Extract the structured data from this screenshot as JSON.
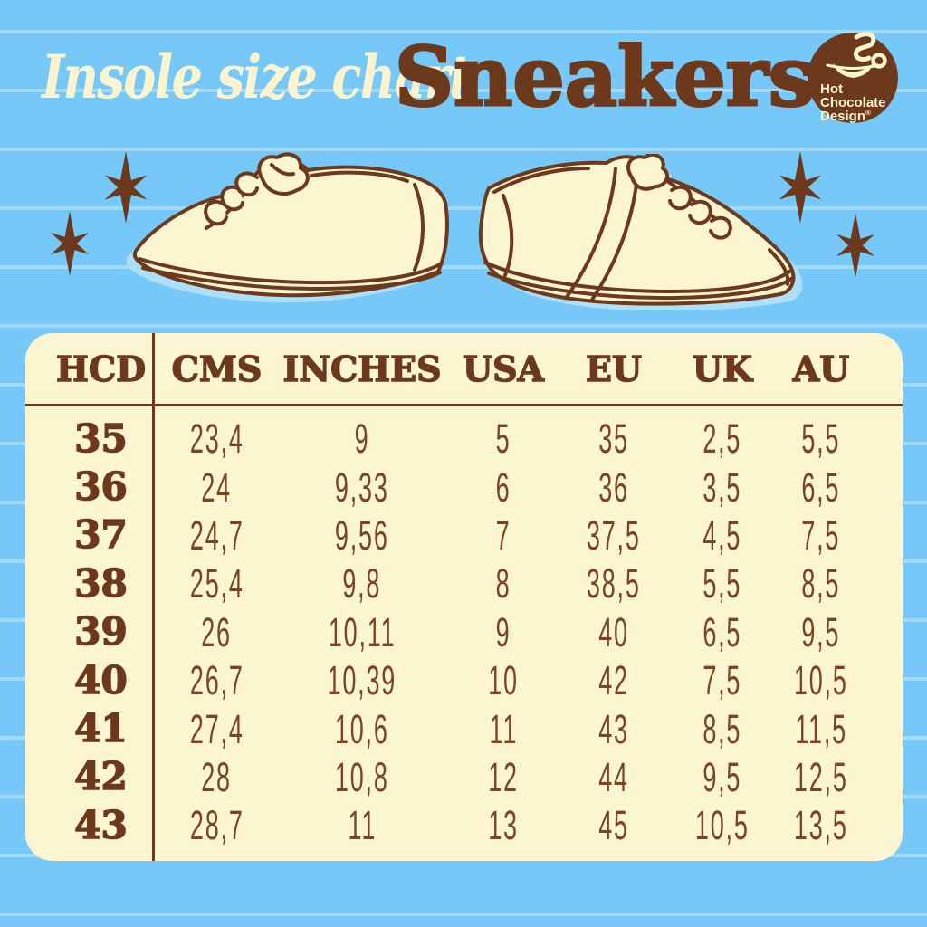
{
  "page": {
    "title_script": "Insole size chart",
    "title_main": "Sneakers"
  },
  "logo": {
    "line1": "Hot",
    "line2": "Chocolate",
    "line3": "Design",
    "registered": "®",
    "icon": "steaming-hot-chocolate-cup-icon"
  },
  "decor": {
    "left_stars": 2,
    "right_stars": 2,
    "star_icon": "sparkle-star-icon",
    "illustrations": [
      "left-facing sneaker",
      "right-facing sneaker"
    ]
  },
  "chart_data": {
    "type": "table",
    "title": "Insole size chart — Sneakers",
    "columns": [
      "HCD",
      "CMS",
      "INCHES",
      "USA",
      "EU",
      "UK",
      "AU"
    ],
    "rows": [
      [
        "35",
        "23,4",
        "9",
        "5",
        "35",
        "2,5",
        "5,5"
      ],
      [
        "36",
        "24",
        "9,33",
        "6",
        "36",
        "3,5",
        "6,5"
      ],
      [
        "37",
        "24,7",
        "9,56",
        "7",
        "37,5",
        "4,5",
        "7,5"
      ],
      [
        "38",
        "25,4",
        "9,8",
        "8",
        "38,5",
        "5,5",
        "8,5"
      ],
      [
        "39",
        "26",
        "10,11",
        "9",
        "40",
        "6,5",
        "9,5"
      ],
      [
        "40",
        "26,7",
        "10,39",
        "10",
        "42",
        "7,5",
        "10,5"
      ],
      [
        "41",
        "27,4",
        "10,6",
        "11",
        "43",
        "8,5",
        "11,5"
      ],
      [
        "42",
        "28",
        "10,8",
        "12",
        "44",
        "9,5",
        "12,5"
      ],
      [
        "43",
        "28,7",
        "11",
        "13",
        "45",
        "10,5",
        "13,5"
      ]
    ],
    "layout": "HCD size column separated by vertical rule; header row separated by horizontal rule"
  },
  "colors": {
    "background_blue": "#75C8F7",
    "ruled_line_blue": "#9AD6F9",
    "cream": "#FBF5D1",
    "brown": "#6D391C",
    "data_brown": "#7A4522",
    "shoe_shadow_blue": "#AEDFF8"
  }
}
